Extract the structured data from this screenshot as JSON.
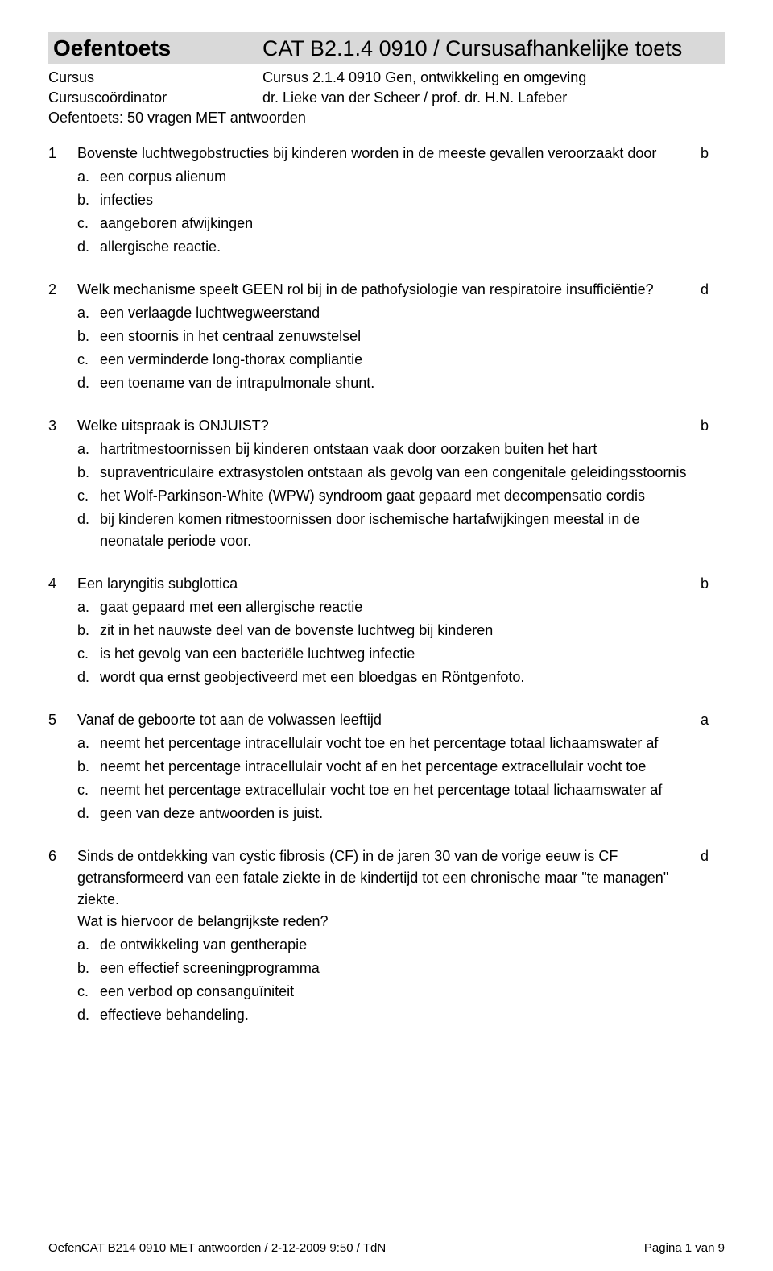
{
  "header": {
    "title_left": "Oefentoets",
    "title_right": "CAT B2.1.4 0910 / Cursusafhankelijke toets",
    "rows": [
      {
        "label": "Cursus",
        "value": "Cursus 2.1.4 0910 Gen, ontwikkeling en omgeving"
      },
      {
        "label": "Cursuscoördinator",
        "value": "dr. Lieke van der Scheer / prof. dr. H.N. Lafeber"
      }
    ],
    "subtitle": "Oefentoets: 50 vragen MET antwoorden"
  },
  "questions": [
    {
      "num": "1",
      "text": "Bovenste luchtwegobstructies bij kinderen worden in de meeste gevallen veroorzaakt door",
      "answer": "b",
      "options": [
        {
          "letter": "a.",
          "text": "een corpus alienum"
        },
        {
          "letter": "b.",
          "text": "infecties"
        },
        {
          "letter": "c.",
          "text": "aangeboren afwijkingen"
        },
        {
          "letter": "d.",
          "text": "allergische reactie."
        }
      ]
    },
    {
      "num": "2",
      "text": "Welk mechanisme speelt GEEN rol bij in de pathofysiologie van respiratoire insufficiëntie?",
      "answer": "d",
      "options": [
        {
          "letter": "a.",
          "text": "een verlaagde luchtwegweerstand"
        },
        {
          "letter": "b.",
          "text": "een stoornis in het centraal zenuwstelsel"
        },
        {
          "letter": "c.",
          "text": "een verminderde long-thorax compliantie"
        },
        {
          "letter": "d.",
          "text": "een toename van de intrapulmonale shunt."
        }
      ]
    },
    {
      "num": "3",
      "text": "Welke uitspraak is ONJUIST?",
      "answer": "b",
      "options": [
        {
          "letter": "a.",
          "text": "hartritmestoornissen bij kinderen ontstaan vaak door oorzaken buiten het hart"
        },
        {
          "letter": "b.",
          "text": "supraventriculaire extrasystolen ontstaan als gevolg van een congenitale geleidingsstoornis"
        },
        {
          "letter": "c.",
          "text": "het Wolf-Parkinson-White (WPW) syndroom gaat gepaard met decompensatio cordis"
        },
        {
          "letter": "d.",
          "text": "bij kinderen komen ritmestoornissen door ischemische hartafwijkingen meestal in de neonatale periode voor."
        }
      ]
    },
    {
      "num": "4",
      "text": "Een laryngitis subglottica",
      "answer": "b",
      "options": [
        {
          "letter": "a.",
          "text": "gaat gepaard met een allergische reactie"
        },
        {
          "letter": "b.",
          "text": "zit in het nauwste deel van de bovenste luchtweg bij kinderen"
        },
        {
          "letter": "c.",
          "text": "is het gevolg van een bacteriële luchtweg infectie"
        },
        {
          "letter": "d.",
          "text": "wordt qua ernst geobjectiveerd met een bloedgas en Röntgenfoto."
        }
      ]
    },
    {
      "num": "5",
      "text": "Vanaf de geboorte tot aan de volwassen leeftijd",
      "answer": "a",
      "options": [
        {
          "letter": "a.",
          "text": "neemt het percentage intracellulair vocht toe en het percentage totaal lichaamswater af"
        },
        {
          "letter": "b.",
          "text": "neemt het percentage intracellulair vocht af en het percentage extracellulair vocht toe"
        },
        {
          "letter": "c.",
          "text": "neemt het percentage extracellulair vocht toe en het percentage totaal lichaamswater af"
        },
        {
          "letter": "d.",
          "text": "geen van deze antwoorden is juist."
        }
      ]
    },
    {
      "num": "6",
      "text": "Sinds de ontdekking van cystic fibrosis (CF) in de jaren 30 van de vorige eeuw is CF getransformeerd van een fatale ziekte in de kindertijd tot een chronische maar \"te managen\" ziekte.\nWat is hiervoor de belangrijkste reden?",
      "answer": "d",
      "options": [
        {
          "letter": "a.",
          "text": "de ontwikkeling van gentherapie"
        },
        {
          "letter": "b.",
          "text": "een effectief screeningprogramma"
        },
        {
          "letter": "c.",
          "text": "een verbod op consanguïniteit"
        },
        {
          "letter": "d.",
          "text": "effectieve behandeling."
        }
      ]
    }
  ],
  "footer": {
    "left": "OefenCAT B214 0910 MET antwoorden / 2-12-2009 9:50 / TdN",
    "right": "Pagina 1 van 9"
  }
}
